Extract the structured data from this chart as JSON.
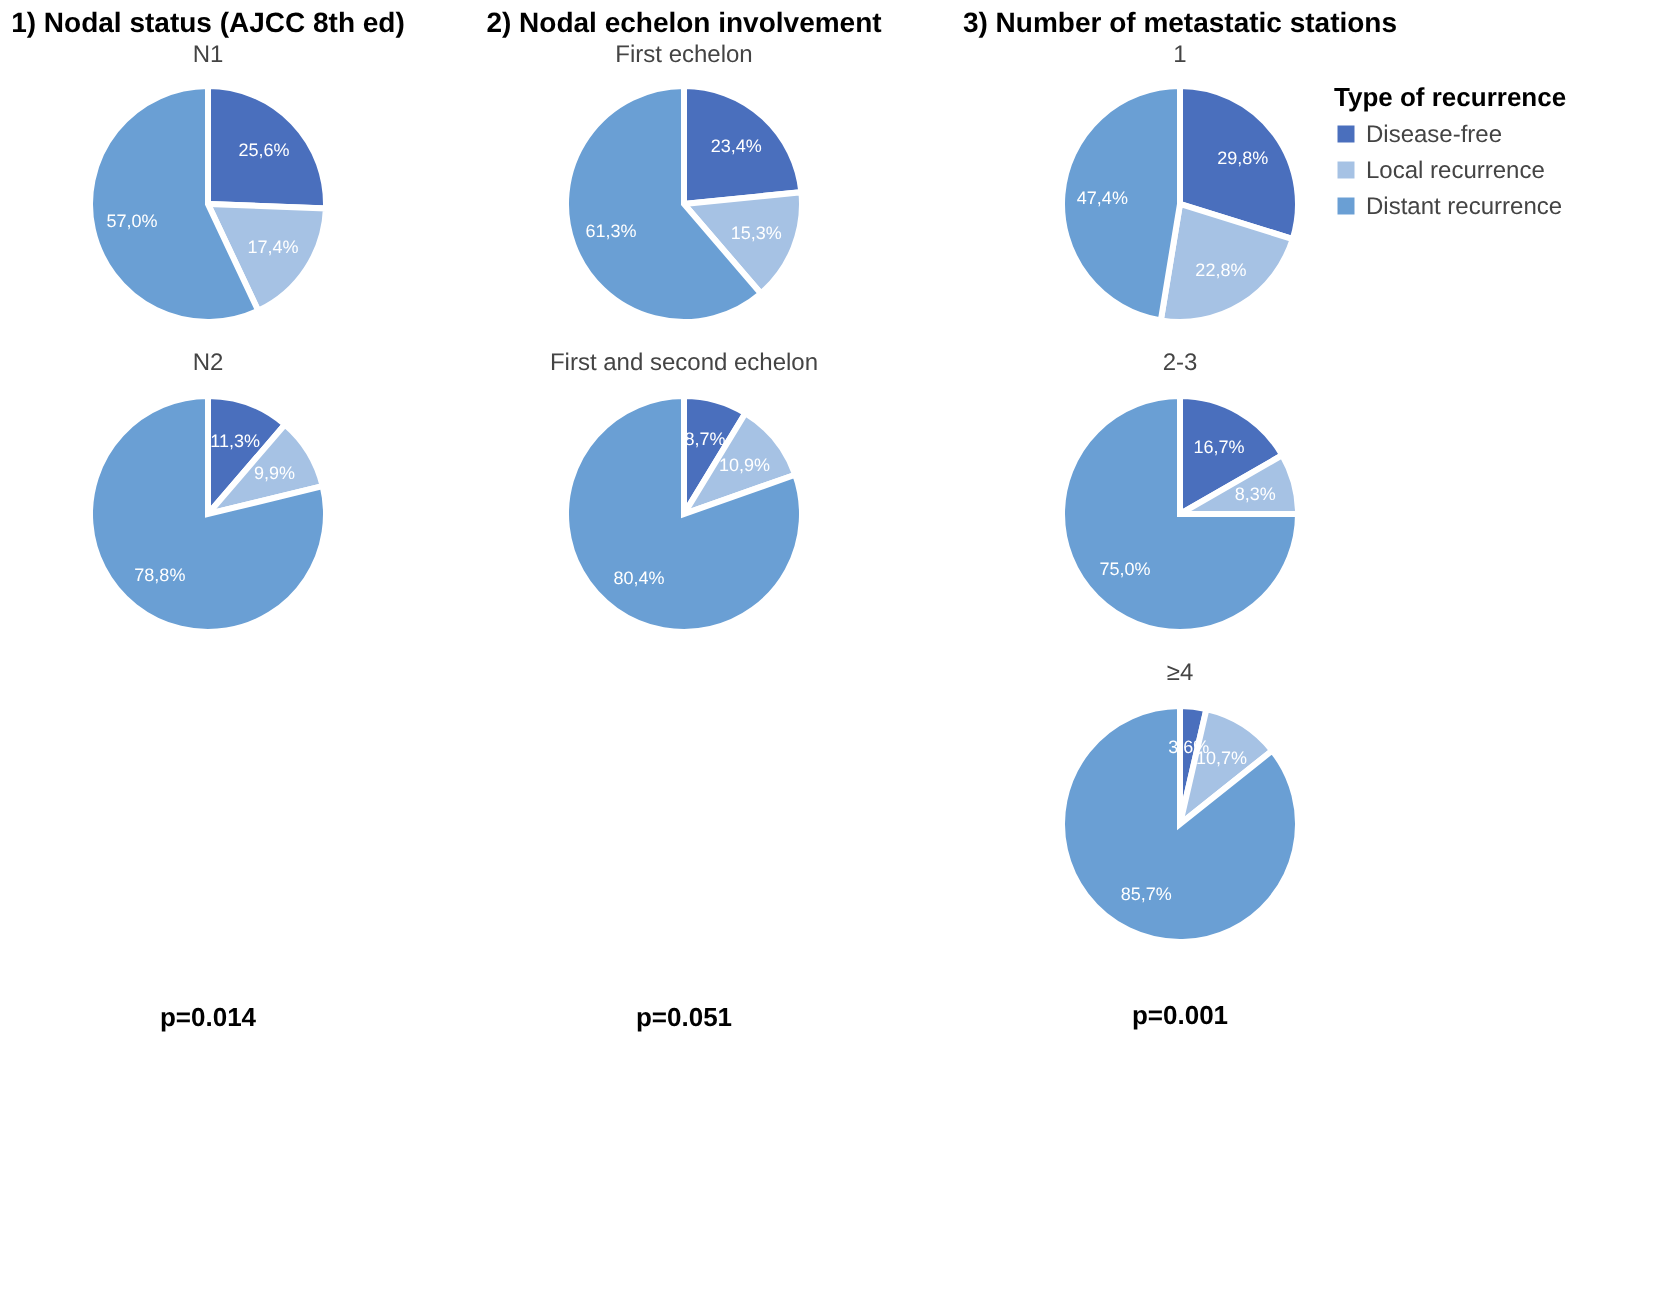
{
  "chart_data": [
    {
      "type": "pie",
      "title": "1) Nodal status (AJCC 8th ed)",
      "subtitle": "N1",
      "categories": [
        null,
        null,
        null
      ],
      "values": [
        25.6,
        17.4,
        57.0
      ],
      "value_labels": [
        "25,6%",
        "17,4%",
        "57,0%"
      ],
      "colors": [
        "#4a6fbd",
        "#a6c2e4",
        "#6a9fd4"
      ],
      "legend": false
    },
    {
      "type": "pie",
      "subtitle": "N2",
      "categories": [
        null,
        null,
        null
      ],
      "values": [
        11.3,
        9.9,
        78.8
      ],
      "value_labels": [
        "11,3%",
        "9,9%",
        "78,8%"
      ],
      "colors": [
        "#4a6fbd",
        "#a6c2e4",
        "#6a9fd4"
      ],
      "legend": false,
      "annotations": [
        "p=0.014"
      ]
    },
    {
      "type": "pie",
      "title": "2) Nodal echelon involvement",
      "subtitle": "First echelon",
      "categories": [
        null,
        null,
        null
      ],
      "values": [
        23.4,
        15.3,
        61.3
      ],
      "value_labels": [
        "23,4%",
        "15,3%",
        "61,3%"
      ],
      "colors": [
        "#4a6fbd",
        "#a6c2e4",
        "#6a9fd4"
      ],
      "legend": false
    },
    {
      "type": "pie",
      "subtitle": "First and second echelon",
      "categories": [
        null,
        null,
        null
      ],
      "values": [
        8.7,
        10.9,
        80.4
      ],
      "value_labels": [
        "8,7%",
        "10,9%",
        "80,4%"
      ],
      "colors": [
        "#4a6fbd",
        "#a6c2e4",
        "#6a9fd4"
      ],
      "legend": false,
      "annotations": [
        "p=0.051"
      ]
    },
    {
      "type": "pie",
      "title": "3) Number of metastatic stations",
      "subtitle": "1",
      "categories": [
        "Disease-free",
        "Local recurrence",
        "Distant recurrence"
      ],
      "values": [
        29.8,
        22.8,
        47.4
      ],
      "value_labels": [
        "29,8%",
        "22,8%",
        "47,4%"
      ],
      "colors": [
        "#4a6fbd",
        "#a6c2e4",
        "#6a9fd4"
      ],
      "legend": "right",
      "legend_title": "Type of recurrence"
    },
    {
      "type": "pie",
      "subtitle": "2-3",
      "categories": [
        null,
        null,
        null
      ],
      "values": [
        16.7,
        8.3,
        75.0
      ],
      "value_labels": [
        "16,7%",
        "8,3%",
        "75,0%"
      ],
      "colors": [
        "#4a6fbd",
        "#a6c2e4",
        "#6a9fd4"
      ],
      "legend": false
    },
    {
      "type": "pie",
      "subtitle": "≥4",
      "categories": [
        null,
        null,
        null
      ],
      "values": [
        3.6,
        10.7,
        85.7
      ],
      "value_labels": [
        "3,6%",
        "10,7%",
        "85,7%"
      ],
      "colors": [
        "#4a6fbd",
        "#a6c2e4",
        "#6a9fd4"
      ],
      "legend": false,
      "annotations": [
        "p=0.001"
      ]
    }
  ]
}
